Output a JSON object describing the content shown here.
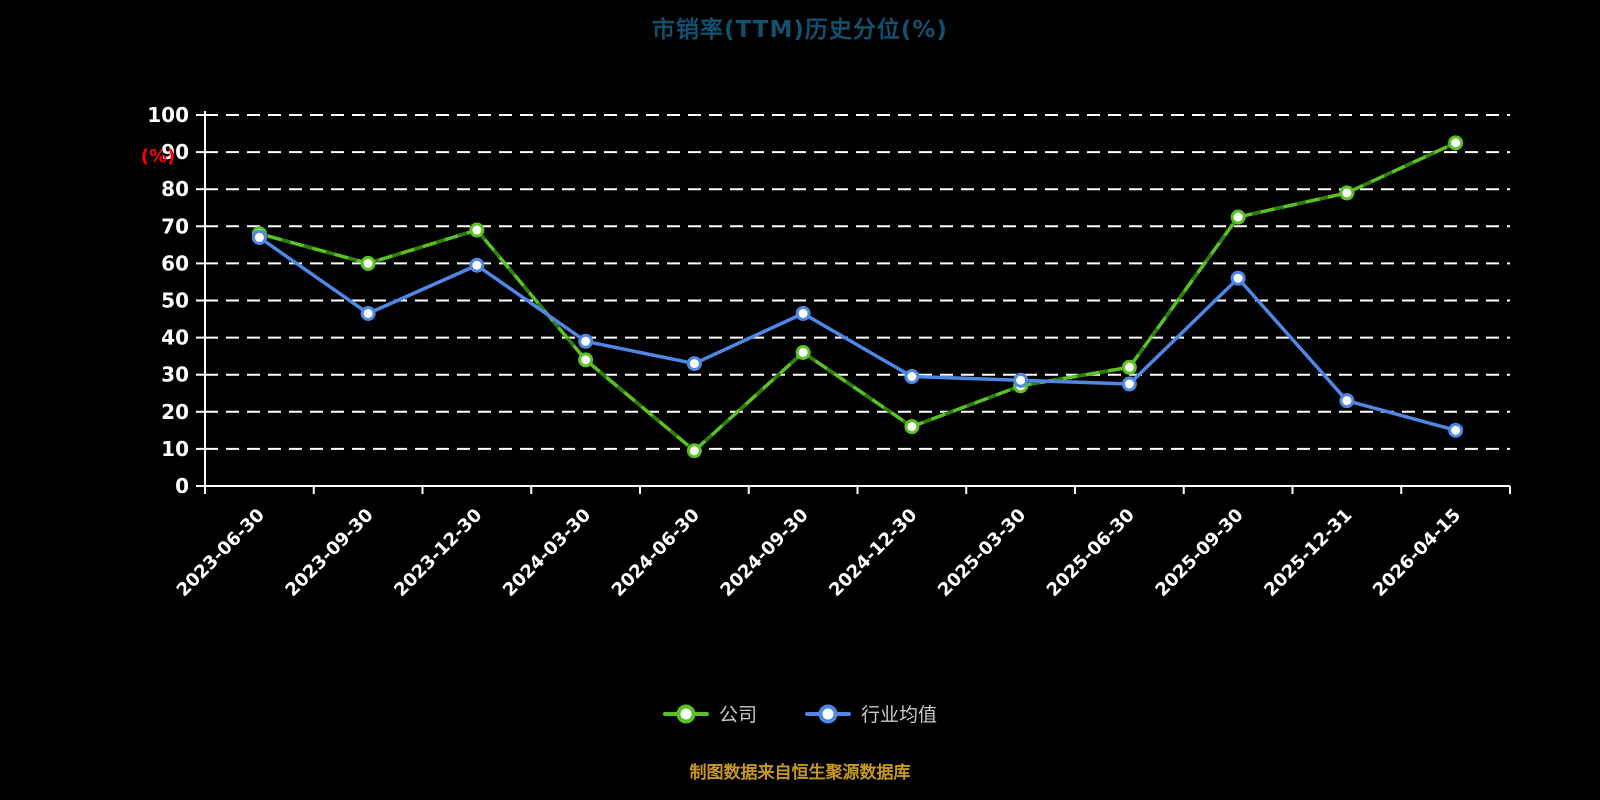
{
  "chart_data": {
    "type": "line",
    "title": "市销率(TTM)历史分位(%)",
    "title_color": "#11506e",
    "ylabel": "(%)",
    "ylabel_color": "#ff0000",
    "ylim": [
      0,
      100
    ],
    "y_tick_step": 10,
    "y_tick_labels": [
      "0",
      "10",
      "20",
      "30",
      "40",
      "50",
      "60",
      "70",
      "80",
      "90",
      "100"
    ],
    "grid": "dashed-horizontal",
    "legend_position": "bottom",
    "categories": [
      "2023-06-30",
      "2023-09-30",
      "2023-12-30",
      "2024-03-30",
      "2024-06-30",
      "2024-09-30",
      "2024-12-30",
      "2025-03-30",
      "2025-06-30",
      "2025-09-30",
      "2025-12-31",
      "2026-04-15"
    ],
    "series": [
      {
        "name": "公司",
        "color": "#58c322",
        "dash_overlay": "#2e7d0f",
        "values": [
          68,
          60,
          69,
          34,
          9.5,
          36,
          16,
          27,
          32,
          72.5,
          79,
          92.5
        ]
      },
      {
        "name": "行业均值",
        "color": "#4e87e5",
        "values": [
          67,
          46.5,
          59.5,
          39,
          33,
          46.5,
          29.5,
          28.5,
          27.5,
          56,
          23,
          15
        ]
      }
    ]
  },
  "footer": {
    "note": "制图数据来自恒生聚源数据库",
    "color": "#c6991c"
  }
}
